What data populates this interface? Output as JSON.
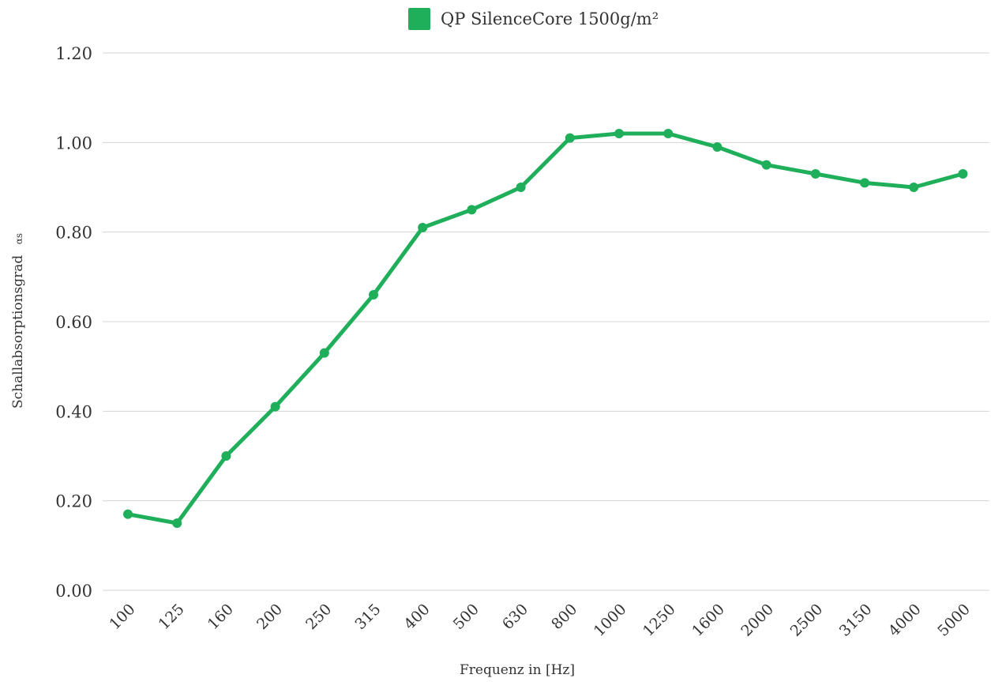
{
  "chart_data": {
    "type": "line",
    "xlabel": "Frequenz in [Hz]",
    "ylabel": "Schallabsorptionsgrad",
    "ylabel_symbol": "αs",
    "categories": [
      "100",
      "125",
      "160",
      "200",
      "250",
      "315",
      "400",
      "500",
      "630",
      "800",
      "1000",
      "1250",
      "1600",
      "2000",
      "2500",
      "3150",
      "4000",
      "5000"
    ],
    "series": [
      {
        "name": "QP SilenceCore 1500g/m²",
        "color": "#1faf5a",
        "values": [
          0.17,
          0.15,
          0.3,
          0.41,
          0.53,
          0.66,
          0.81,
          0.85,
          0.9,
          1.01,
          1.02,
          1.02,
          0.99,
          0.95,
          0.93,
          0.91,
          0.9,
          0.93
        ]
      }
    ],
    "ylim": [
      0,
      1.2
    ],
    "yticks": [
      "0.00",
      "0.20",
      "0.40",
      "0.60",
      "0.80",
      "1.00",
      "1.20"
    ],
    "grid": true,
    "legend": "top-center"
  }
}
